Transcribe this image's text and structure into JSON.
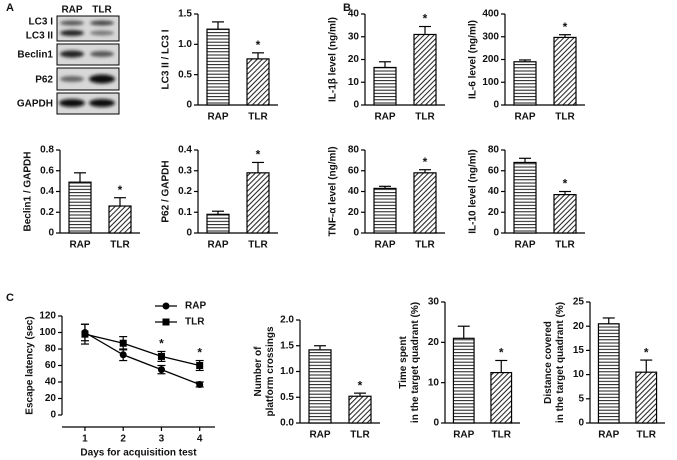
{
  "figure": {
    "panel_labels": [
      "A",
      "B",
      "C"
    ],
    "blot": {
      "columns": [
        "RAP",
        "TLR"
      ],
      "rows": [
        "LC3 I",
        "LC3 II",
        "Beclin1",
        "P62",
        "GAPDH"
      ]
    }
  },
  "chart_data": [
    {
      "type": "bar",
      "ylabel": "LC3 II / LC3 I",
      "categories": [
        "RAP",
        "TLR"
      ],
      "values": [
        1.25,
        0.76
      ],
      "errors": [
        0.12,
        0.1
      ],
      "significance": [
        null,
        "*"
      ],
      "hatch": [
        "horizontal",
        "diagonal"
      ],
      "color": "#000000",
      "ylim": [
        0,
        1.5
      ],
      "yticks": [
        0,
        0.5,
        {
          "value": 1,
          "label": "1.0"
        },
        1.5
      ]
    },
    {
      "type": "bar",
      "ylabel": "Beclin1 / GAPDH",
      "categories": [
        "RAP",
        "TLR"
      ],
      "values": [
        0.49,
        0.26
      ],
      "errors": [
        0.09,
        0.08
      ],
      "significance": [
        null,
        "*"
      ],
      "hatch": [
        "horizontal",
        "diagonal"
      ],
      "color": "#000000",
      "ylim": [
        0,
        0.8
      ],
      "yticks": [
        0,
        0.2,
        0.4,
        0.6,
        0.8
      ]
    },
    {
      "type": "bar",
      "ylabel": "P62 / GAPDH",
      "categories": [
        "RAP",
        "TLR"
      ],
      "values": [
        0.09,
        0.29
      ],
      "errors": [
        0.015,
        0.05
      ],
      "significance": [
        null,
        "*"
      ],
      "hatch": [
        "horizontal",
        "diagonal"
      ],
      "color": "#000000",
      "ylim": [
        0,
        0.4
      ],
      "yticks": [
        0,
        0.1,
        0.2,
        0.3,
        0.4
      ]
    },
    {
      "type": "bar",
      "ylabel": "IL-1β level (ng/ml)",
      "categories": [
        "RAP",
        "TLR"
      ],
      "values": [
        16.5,
        31
      ],
      "errors": [
        2.5,
        3.5
      ],
      "significance": [
        null,
        "*"
      ],
      "hatch": [
        "horizontal",
        "diagonal"
      ],
      "color": "#000000",
      "ylim": [
        0,
        40
      ],
      "yticks": [
        0,
        10,
        20,
        30,
        40
      ]
    },
    {
      "type": "bar",
      "ylabel": "IL-6 level (ng/ml)",
      "categories": [
        "RAP",
        "TLR"
      ],
      "values": [
        190,
        297
      ],
      "errors": [
        8,
        12
      ],
      "significance": [
        null,
        "*"
      ],
      "hatch": [
        "horizontal",
        "diagonal"
      ],
      "color": "#000000",
      "ylim": [
        0,
        400
      ],
      "yticks": [
        0,
        100,
        200,
        300,
        400
      ]
    },
    {
      "type": "bar",
      "ylabel": "TNF-α level (ng/ml)",
      "categories": [
        "RAP",
        "TLR"
      ],
      "values": [
        43,
        58
      ],
      "errors": [
        2,
        3
      ],
      "significance": [
        null,
        "*"
      ],
      "hatch": [
        "horizontal",
        "diagonal"
      ],
      "color": "#000000",
      "ylim": [
        0,
        80
      ],
      "yticks": [
        0,
        20,
        40,
        60,
        80
      ]
    },
    {
      "type": "bar",
      "ylabel": "IL-10 level (ng/ml)",
      "categories": [
        "RAP",
        "TLR"
      ],
      "values": [
        68,
        37
      ],
      "errors": [
        4,
        3
      ],
      "significance": [
        null,
        "*"
      ],
      "hatch": [
        "horizontal",
        "diagonal"
      ],
      "color": "#000000",
      "ylim": [
        0,
        80
      ],
      "yticks": [
        0,
        20,
        40,
        60,
        80
      ]
    },
    {
      "type": "line",
      "ylabel": "Escape latency (sec)",
      "xlabel": "Days for acquisition test",
      "x": [
        1,
        2,
        3,
        4
      ],
      "xlim": [
        0.4,
        4.4
      ],
      "xticks": [
        1,
        2,
        3,
        4
      ],
      "ylim": [
        0,
        120
      ],
      "yticks": [
        0,
        20,
        40,
        60,
        80,
        100,
        120
      ],
      "legend": "upper right",
      "significance": [
        null,
        null,
        "*",
        "*"
      ],
      "series": [
        {
          "name": "RAP",
          "color": "#000000",
          "marker": "circle",
          "values": [
            100,
            73,
            55,
            37
          ],
          "errors": [
            10,
            7,
            5,
            3
          ]
        },
        {
          "name": "TLR",
          "color": "#000000",
          "marker": "square",
          "values": [
            98,
            87,
            71,
            60
          ],
          "errors": [
            12,
            8,
            6,
            6
          ]
        }
      ]
    },
    {
      "type": "bar",
      "ylabel": [
        "Number of",
        "platform crossings"
      ],
      "categories": [
        "RAP",
        "TLR"
      ],
      "values": [
        1.42,
        0.52
      ],
      "errors": [
        0.08,
        0.06
      ],
      "significance": [
        null,
        "*"
      ],
      "hatch": [
        "horizontal",
        "diagonal"
      ],
      "color": "#000000",
      "ylim": [
        0,
        2
      ],
      "yticks": [
        {
          "value": 0,
          "label": "0.0"
        },
        0.5,
        {
          "value": 1,
          "label": "1.0"
        },
        1.5,
        {
          "value": 2,
          "label": "2.0"
        }
      ]
    },
    {
      "type": "bar",
      "ylabel": [
        "Time spent",
        "in the target quadrant (%)"
      ],
      "categories": [
        "RAP",
        "TLR"
      ],
      "values": [
        21,
        12.5
      ],
      "errors": [
        3,
        3
      ],
      "significance": [
        null,
        "*"
      ],
      "hatch": [
        "horizontal",
        "diagonal"
      ],
      "color": "#000000",
      "ylim": [
        0,
        30
      ],
      "yticks": [
        0,
        10,
        20,
        30
      ]
    },
    {
      "type": "bar",
      "ylabel": [
        "Distance covered",
        "in the target quadrant (%)"
      ],
      "categories": [
        "RAP",
        "TLR"
      ],
      "values": [
        20.5,
        10.5
      ],
      "errors": [
        1.2,
        2.5
      ],
      "significance": [
        null,
        "*"
      ],
      "hatch": [
        "horizontal",
        "diagonal"
      ],
      "color": "#000000",
      "ylim": [
        0,
        25
      ],
      "yticks": [
        0,
        5,
        10,
        15,
        20,
        25
      ]
    }
  ]
}
